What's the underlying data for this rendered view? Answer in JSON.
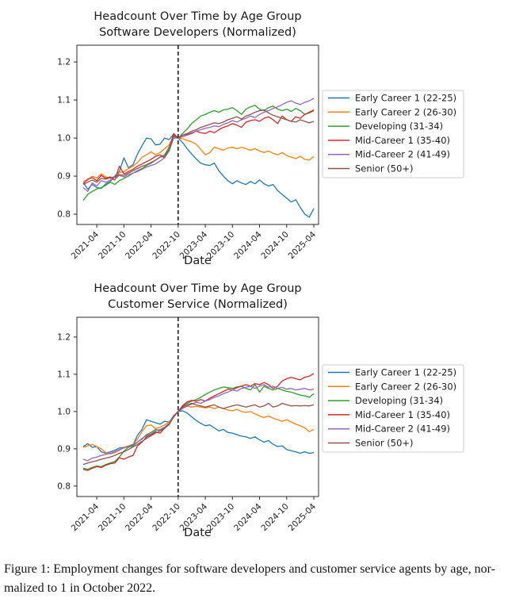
{
  "caption": {
    "line1": "Figure 1: Employment changes for software developers and customer service agents by age, nor-",
    "line2": "malized to 1 in October 2022."
  },
  "chart_data": [
    {
      "type": "line",
      "title_line1": "Headcount Over Time by Age Group",
      "title_line2": "Software Developers (Normalized)",
      "xlabel": "Date",
      "ylabel": "",
      "grid": false,
      "legend_position": "right",
      "vline_x": "2022-10",
      "yticks": [
        0.8,
        0.9,
        1.0,
        1.1,
        1.2
      ],
      "ylim": [
        0.773,
        1.244
      ],
      "xticks": [
        "2021-04",
        "2021-10",
        "2022-04",
        "2022-10",
        "2023-04",
        "2023-10",
        "2024-04",
        "2024-10",
        "2025-04"
      ],
      "x": [
        "2021-01",
        "2021-02",
        "2021-03",
        "2021-04",
        "2021-05",
        "2021-06",
        "2021-07",
        "2021-08",
        "2021-09",
        "2021-10",
        "2021-11",
        "2021-12",
        "2022-01",
        "2022-02",
        "2022-03",
        "2022-04",
        "2022-05",
        "2022-06",
        "2022-07",
        "2022-08",
        "2022-09",
        "2022-10",
        "2022-11",
        "2022-12",
        "2023-01",
        "2023-02",
        "2023-03",
        "2023-04",
        "2023-05",
        "2023-06",
        "2023-07",
        "2023-08",
        "2023-09",
        "2023-10",
        "2023-11",
        "2023-12",
        "2024-01",
        "2024-02",
        "2024-03",
        "2024-04",
        "2024-05",
        "2024-06",
        "2024-07",
        "2024-08",
        "2024-09",
        "2024-10",
        "2024-11",
        "2024-12",
        "2025-01",
        "2025-02",
        "2025-03",
        "2025-04"
      ],
      "series": [
        {
          "name": "Early Career 1 (22-25)",
          "color": "#1f77b4",
          "values": [
            0.883,
            0.866,
            0.878,
            0.87,
            0.868,
            0.88,
            0.886,
            0.9,
            0.912,
            0.948,
            0.922,
            0.93,
            0.958,
            0.98,
            1.0,
            0.998,
            0.982,
            0.984,
            1.0,
            0.996,
            1.01,
            1.0,
            0.988,
            0.972,
            0.958,
            0.945,
            0.934,
            0.93,
            0.928,
            0.934,
            0.914,
            0.9,
            0.888,
            0.88,
            0.888,
            0.882,
            0.878,
            0.886,
            0.88,
            0.89,
            0.88,
            0.874,
            0.878,
            0.862,
            0.852,
            0.842,
            0.832,
            0.838,
            0.818,
            0.8,
            0.792,
            0.815
          ]
        },
        {
          "name": "Early Career 2 (26-30)",
          "color": "#ff7f0e",
          "values": [
            0.886,
            0.89,
            0.9,
            0.895,
            0.906,
            0.898,
            0.894,
            0.89,
            0.91,
            0.912,
            0.92,
            0.926,
            0.936,
            0.95,
            0.956,
            0.964,
            0.956,
            0.962,
            0.972,
            0.982,
            1.006,
            1.0,
            0.998,
            0.994,
            0.99,
            0.984,
            0.97,
            0.956,
            0.962,
            0.976,
            0.972,
            0.968,
            0.974,
            0.976,
            0.972,
            0.976,
            0.972,
            0.968,
            0.972,
            0.966,
            0.962,
            0.966,
            0.96,
            0.956,
            0.962,
            0.954,
            0.95,
            0.946,
            0.952,
            0.944,
            0.942,
            0.952
          ]
        },
        {
          "name": "Developing (31-34)",
          "color": "#2ca02c",
          "values": [
            0.836,
            0.852,
            0.86,
            0.866,
            0.87,
            0.876,
            0.884,
            0.878,
            0.888,
            0.894,
            0.9,
            0.908,
            0.914,
            0.92,
            0.928,
            0.934,
            0.942,
            0.95,
            0.956,
            0.976,
            1.004,
            1.0,
            1.012,
            1.024,
            1.038,
            1.048,
            1.058,
            1.062,
            1.068,
            1.072,
            1.068,
            1.074,
            1.076,
            1.08,
            1.072,
            1.062,
            1.076,
            1.082,
            1.086,
            1.076,
            1.072,
            1.08,
            1.084,
            1.076,
            1.072,
            1.076,
            1.07,
            1.078,
            1.072,
            1.062,
            1.066,
            1.072
          ]
        },
        {
          "name": "Mid-Career 1 (35-40)",
          "color": "#d62728",
          "values": [
            0.88,
            0.892,
            0.896,
            0.888,
            0.902,
            0.894,
            0.898,
            0.89,
            0.926,
            0.906,
            0.912,
            0.918,
            0.926,
            0.932,
            0.938,
            0.944,
            0.952,
            0.956,
            0.948,
            0.97,
            1.012,
            1.0,
            1.004,
            1.008,
            1.012,
            1.018,
            1.014,
            1.012,
            1.018,
            1.014,
            1.022,
            1.028,
            1.032,
            1.038,
            1.034,
            1.028,
            1.042,
            1.046,
            1.048,
            1.044,
            1.052,
            1.056,
            1.048,
            1.038,
            1.058,
            1.048,
            1.044,
            1.056,
            1.052,
            1.062,
            1.068,
            1.074
          ]
        },
        {
          "name": "Mid-Career 2 (41-49)",
          "color": "#9467bd",
          "values": [
            0.87,
            0.86,
            0.882,
            0.874,
            0.888,
            0.884,
            0.89,
            0.892,
            0.902,
            0.898,
            0.904,
            0.908,
            0.912,
            0.918,
            0.924,
            0.928,
            0.932,
            0.94,
            0.948,
            0.966,
            1.0,
            1.0,
            1.004,
            1.01,
            1.014,
            1.018,
            1.022,
            1.026,
            1.028,
            1.032,
            1.03,
            1.036,
            1.04,
            1.046,
            1.042,
            1.048,
            1.052,
            1.058,
            1.054,
            1.062,
            1.068,
            1.072,
            1.078,
            1.082,
            1.088,
            1.094,
            1.098,
            1.092,
            1.088,
            1.094,
            1.098,
            1.104
          ]
        },
        {
          "name": "Senior (50+)",
          "color": "#8c564b",
          "values": [
            0.878,
            0.884,
            0.89,
            0.884,
            0.894,
            0.892,
            0.896,
            0.898,
            0.904,
            0.902,
            0.908,
            0.914,
            0.92,
            0.926,
            0.93,
            0.936,
            0.942,
            0.95,
            0.952,
            0.97,
            1.006,
            1.0,
            1.008,
            1.012,
            1.018,
            1.022,
            1.028,
            1.032,
            1.036,
            1.04,
            1.038,
            1.042,
            1.048,
            1.052,
            1.056,
            1.05,
            1.058,
            1.062,
            1.068,
            1.072,
            1.074,
            1.066,
            1.06,
            1.056,
            1.052,
            1.048,
            1.044,
            1.042,
            1.048,
            1.044,
            1.04,
            1.044
          ]
        }
      ]
    },
    {
      "type": "line",
      "title_line1": "Headcount Over Time by Age Group",
      "title_line2": "Customer Service (Normalized)",
      "xlabel": "Date",
      "ylabel": "",
      "grid": false,
      "legend_position": "right",
      "vline_x": "2022-10",
      "yticks": [
        0.8,
        0.9,
        1.0,
        1.1,
        1.2
      ],
      "ylim": [
        0.772,
        1.253
      ],
      "xticks": [
        "2021-04",
        "2021-10",
        "2022-04",
        "2022-10",
        "2023-04",
        "2023-10",
        "2024-04",
        "2024-10",
        "2025-04"
      ],
      "x": [
        "2021-01",
        "2021-02",
        "2021-03",
        "2021-04",
        "2021-05",
        "2021-06",
        "2021-07",
        "2021-08",
        "2021-09",
        "2021-10",
        "2021-11",
        "2021-12",
        "2022-01",
        "2022-02",
        "2022-03",
        "2022-04",
        "2022-05",
        "2022-06",
        "2022-07",
        "2022-08",
        "2022-09",
        "2022-10",
        "2022-11",
        "2022-12",
        "2023-01",
        "2023-02",
        "2023-03",
        "2023-04",
        "2023-05",
        "2023-06",
        "2023-07",
        "2023-08",
        "2023-09",
        "2023-10",
        "2023-11",
        "2023-12",
        "2024-01",
        "2024-02",
        "2024-03",
        "2024-04",
        "2024-05",
        "2024-06",
        "2024-07",
        "2024-08",
        "2024-09",
        "2024-10",
        "2024-11",
        "2024-12",
        "2025-01",
        "2025-02",
        "2025-03",
        "2025-04"
      ],
      "series": [
        {
          "name": "Early Career 1 (22-25)",
          "color": "#1f77b4",
          "values": [
            0.906,
            0.914,
            0.904,
            0.906,
            0.892,
            0.888,
            0.892,
            0.896,
            0.902,
            0.904,
            0.906,
            0.91,
            0.936,
            0.952,
            0.978,
            0.974,
            0.97,
            0.966,
            0.974,
            0.972,
            0.988,
            1.0,
            1.002,
            0.996,
            0.986,
            0.976,
            0.968,
            0.962,
            0.964,
            0.956,
            0.948,
            0.952,
            0.944,
            0.942,
            0.938,
            0.934,
            0.932,
            0.928,
            0.932,
            0.924,
            0.918,
            0.922,
            0.912,
            0.906,
            0.908,
            0.898,
            0.895,
            0.892,
            0.888,
            0.892,
            0.888,
            0.89
          ]
        },
        {
          "name": "Early Career 2 (26-30)",
          "color": "#ff7f0e",
          "values": [
            0.904,
            0.908,
            0.912,
            0.906,
            0.9,
            0.89,
            0.886,
            0.89,
            0.896,
            0.904,
            0.908,
            0.912,
            0.926,
            0.946,
            0.962,
            0.964,
            0.954,
            0.958,
            0.964,
            0.972,
            0.986,
            1.0,
            1.01,
            1.014,
            1.012,
            1.014,
            1.012,
            1.01,
            1.012,
            1.008,
            1.012,
            1.008,
            1.004,
            1.002,
            1.006,
            1.0,
            0.998,
            1.0,
            0.994,
            0.988,
            0.984,
            0.988,
            0.982,
            0.978,
            0.974,
            0.978,
            0.972,
            0.966,
            0.962,
            0.956,
            0.946,
            0.952
          ]
        },
        {
          "name": "Developing (31-34)",
          "color": "#2ca02c",
          "values": [
            0.848,
            0.845,
            0.85,
            0.854,
            0.852,
            0.858,
            0.862,
            0.866,
            0.878,
            0.894,
            0.904,
            0.908,
            0.918,
            0.926,
            0.938,
            0.944,
            0.952,
            0.948,
            0.958,
            0.968,
            0.986,
            1.0,
            1.014,
            1.022,
            1.028,
            1.032,
            1.038,
            1.046,
            1.052,
            1.058,
            1.062,
            1.066,
            1.064,
            1.062,
            1.066,
            1.068,
            1.062,
            1.058,
            1.072,
            1.052,
            1.068,
            1.062,
            1.058,
            1.062,
            1.058,
            1.054,
            1.052,
            1.048,
            1.044,
            1.042,
            1.038,
            1.048
          ]
        },
        {
          "name": "Mid-Career 1 (35-40)",
          "color": "#d62728",
          "values": [
            0.845,
            0.842,
            0.848,
            0.852,
            0.85,
            0.856,
            0.86,
            0.862,
            0.876,
            0.872,
            0.878,
            0.882,
            0.908,
            0.918,
            0.932,
            0.938,
            0.945,
            0.942,
            0.955,
            0.965,
            0.988,
            1.0,
            1.016,
            1.026,
            1.03,
            1.028,
            1.032,
            1.028,
            1.036,
            1.042,
            1.048,
            1.054,
            1.06,
            1.058,
            1.064,
            1.068,
            1.072,
            1.068,
            1.075,
            1.072,
            1.078,
            1.072,
            1.062,
            1.068,
            1.082,
            1.088,
            1.092,
            1.088,
            1.085,
            1.092,
            1.095,
            1.102
          ]
        },
        {
          "name": "Mid-Career 2 (41-49)",
          "color": "#9467bd",
          "values": [
            0.872,
            0.868,
            0.875,
            0.878,
            0.882,
            0.885,
            0.888,
            0.892,
            0.898,
            0.902,
            0.906,
            0.912,
            0.918,
            0.928,
            0.935,
            0.94,
            0.948,
            0.952,
            0.958,
            0.968,
            0.985,
            1.0,
            1.008,
            1.015,
            1.02,
            1.025,
            1.022,
            1.028,
            1.032,
            1.038,
            1.042,
            1.048,
            1.052,
            1.058,
            1.055,
            1.062,
            1.065,
            1.068,
            1.062,
            1.068,
            1.072,
            1.065,
            1.068,
            1.062,
            1.065,
            1.06,
            1.062,
            1.058,
            1.06,
            1.062,
            1.058,
            1.06
          ]
        },
        {
          "name": "Senior (50+)",
          "color": "#8c564b",
          "values": [
            0.858,
            0.862,
            0.865,
            0.868,
            0.872,
            0.875,
            0.878,
            0.882,
            0.888,
            0.892,
            0.898,
            0.905,
            0.912,
            0.92,
            0.928,
            0.935,
            0.942,
            0.948,
            0.955,
            0.965,
            0.985,
            1.0,
            1.012,
            1.018,
            1.022,
            1.018,
            1.015,
            1.012,
            1.015,
            1.018,
            1.012,
            1.008,
            1.012,
            1.015,
            1.018,
            1.015,
            1.012,
            1.015,
            1.018,
            1.012,
            1.015,
            1.022,
            1.012,
            1.015,
            1.022,
            1.018,
            1.015,
            1.016,
            1.015,
            1.016,
            1.015,
            1.018
          ]
        }
      ]
    }
  ],
  "style_colors": {
    "spine": "#2b2b2b",
    "text": "#1a1a1a",
    "legend_border": "#cccccc",
    "vline": "#000000"
  }
}
